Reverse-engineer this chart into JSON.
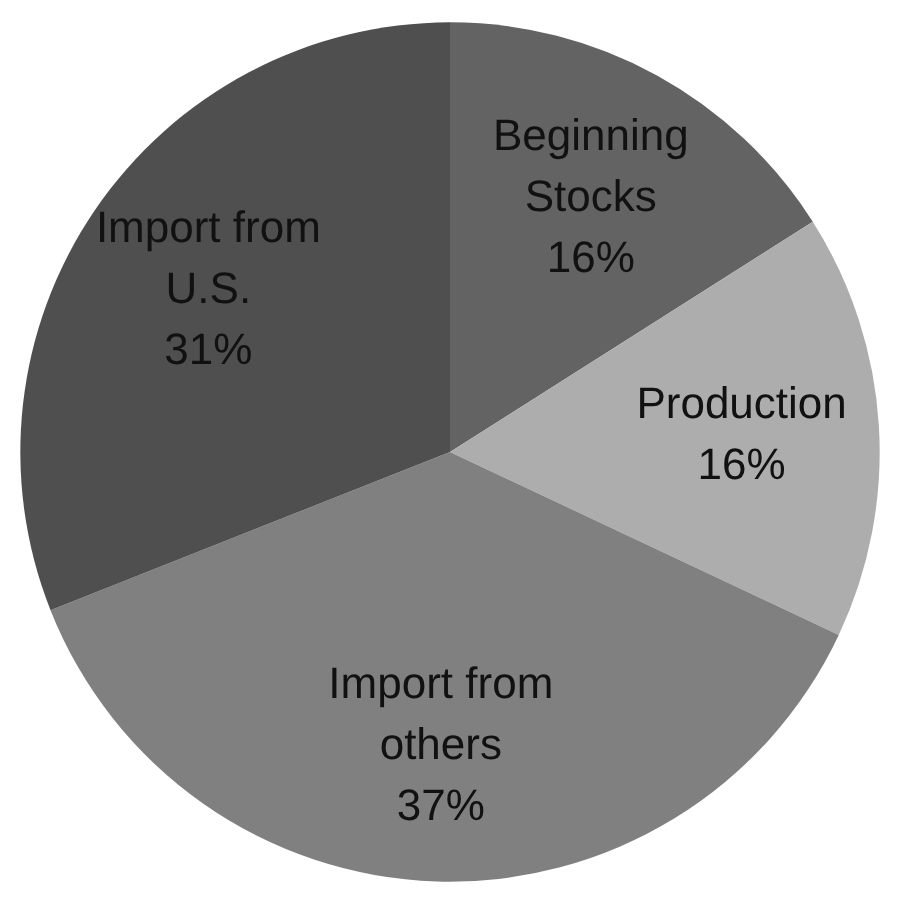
{
  "chart_data": {
    "type": "pie",
    "categories": [
      "Beginning Stocks",
      "Production",
      "Import from others",
      "Import from U.S."
    ],
    "values": [
      16,
      16,
      37,
      31
    ],
    "colors": [
      "#636363",
      "#adadad",
      "#808080",
      "#4f4f4f"
    ],
    "value_labels": [
      "16%",
      "16%",
      "37%",
      "31%"
    ]
  }
}
